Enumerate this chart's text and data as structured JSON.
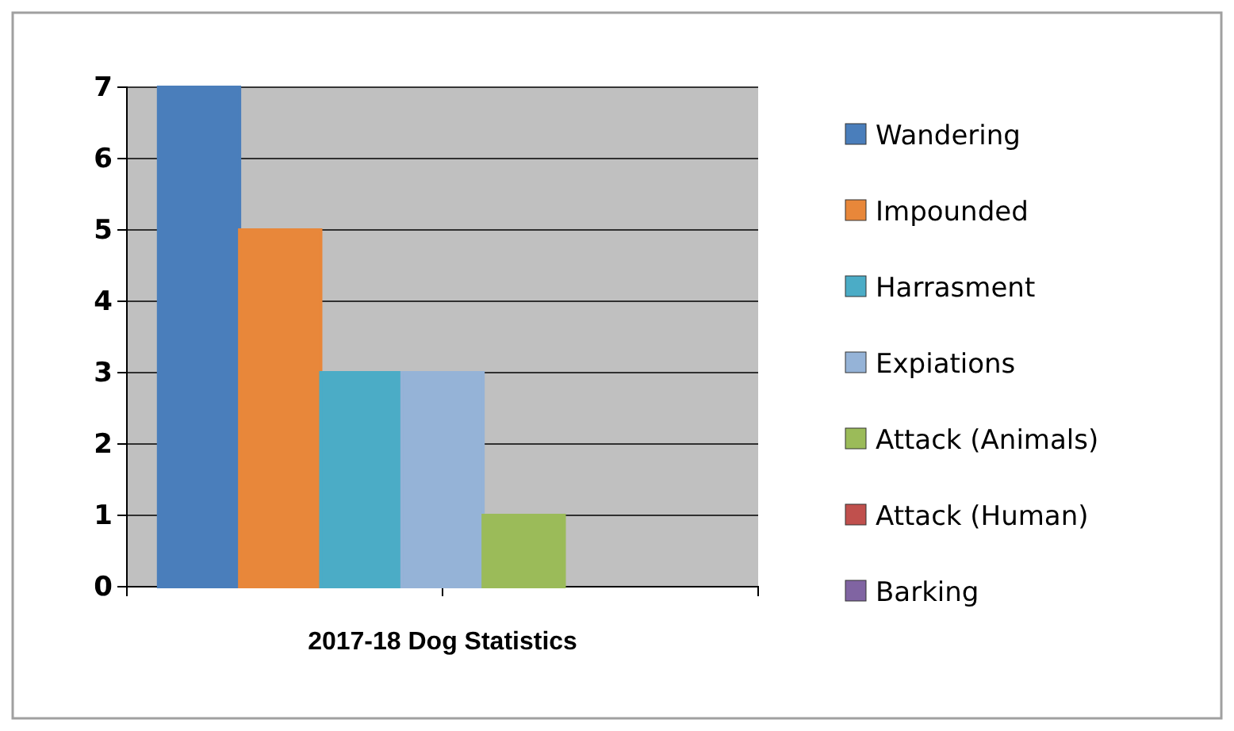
{
  "chart_data": {
    "type": "bar",
    "categories": [
      "2017-18 Dog Statistics"
    ],
    "series": [
      {
        "name": "Wandering",
        "color": "#4a7ebb",
        "values": [
          7
        ]
      },
      {
        "name": "Impounded",
        "color": "#e8873a",
        "values": [
          5
        ]
      },
      {
        "name": "Harrasment",
        "color": "#4bacc6",
        "values": [
          3
        ]
      },
      {
        "name": "Expiations",
        "color": "#95b3d7",
        "values": [
          3
        ]
      },
      {
        "name": "Attack (Animals)",
        "color": "#9bbb59",
        "values": [
          1
        ]
      },
      {
        "name": "Attack (Human)",
        "color": "#c0504d",
        "values": [
          0
        ]
      },
      {
        "name": "Barking",
        "color": "#8064a2",
        "values": [
          0
        ]
      }
    ],
    "ylim": [
      0,
      7
    ],
    "yticks": [
      0,
      1,
      2,
      3,
      4,
      5,
      6,
      7
    ],
    "grid": "y",
    "legend": "right"
  }
}
